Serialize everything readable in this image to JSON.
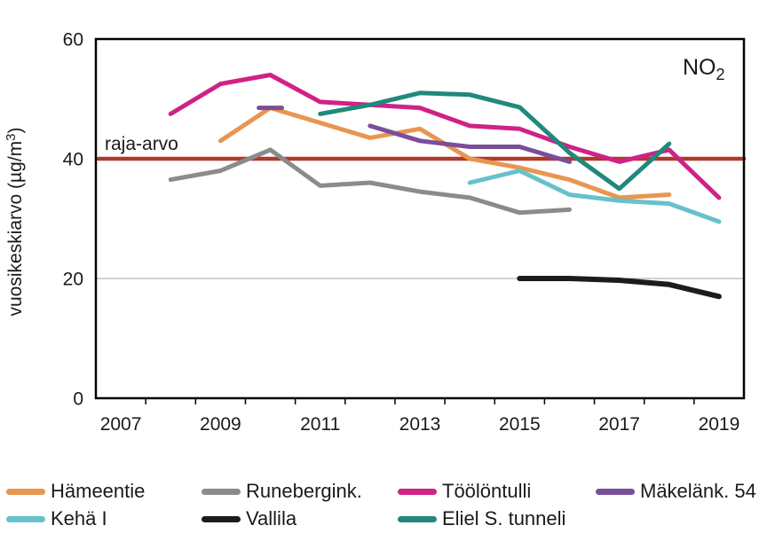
{
  "chart": {
    "corner_title": {
      "text": "NO",
      "subscript": "2"
    },
    "ylabel_parts": {
      "prefix": "vuosikeskiarvo (µg/m",
      "sup": "3",
      "suffix": ")"
    }
  },
  "chart_data": {
    "type": "line",
    "title": "NO2",
    "ylabel": "vuosikeskiarvo (µg/m3)",
    "xlabel": "",
    "ylim": [
      0,
      60
    ],
    "y_ticks": [
      0,
      20,
      40,
      60
    ],
    "x_tick_labels": [
      "2007",
      "2009",
      "2011",
      "2013",
      "2015",
      "2017",
      "2019"
    ],
    "x_range_years": [
      2007,
      2019
    ],
    "grid_y": 20,
    "legend_position": "bottom",
    "limit_line": {
      "label": "raja-arvo",
      "value": 40,
      "color": "#b0392e"
    },
    "series": [
      {
        "name": "Hämeentie",
        "color": "#e8964f",
        "width": 5,
        "segments": [
          [
            [
              2009,
              43
            ],
            [
              2010,
              48.5
            ],
            [
              2011,
              46
            ],
            [
              2012,
              43.5
            ],
            [
              2013,
              45
            ],
            [
              2014,
              40
            ],
            [
              2015,
              38.5
            ],
            [
              2016,
              36.5
            ],
            [
              2017,
              33.5
            ],
            [
              2018,
              34
            ]
          ]
        ]
      },
      {
        "name": "Runebergink.",
        "color": "#8b8b8b",
        "width": 5,
        "segments": [
          [
            [
              2008,
              36.5
            ],
            [
              2009,
              38
            ],
            [
              2010,
              41.5
            ],
            [
              2011,
              35.5
            ],
            [
              2012,
              36
            ],
            [
              2013,
              34.5
            ],
            [
              2014,
              33.5
            ],
            [
              2015,
              31
            ],
            [
              2016,
              31.5
            ]
          ]
        ]
      },
      {
        "name": "Töölöntulli",
        "color": "#cf2287",
        "width": 5,
        "segments": [
          [
            [
              2008,
              47.5
            ],
            [
              2009,
              52.5
            ],
            [
              2010,
              54
            ],
            [
              2011,
              49.5
            ],
            [
              2012,
              49
            ],
            [
              2013,
              48.5
            ],
            [
              2014,
              45.5
            ],
            [
              2015,
              45
            ],
            [
              2016,
              42
            ],
            [
              2017,
              39.5
            ],
            [
              2018,
              41.5
            ],
            [
              2019,
              33.5
            ]
          ]
        ]
      },
      {
        "name": "Mäkelänk. 54",
        "color": "#7b4e99",
        "width": 5,
        "segments": [
          [
            [
              2010,
              48.5
            ]
          ],
          [
            [
              2012,
              45.5
            ],
            [
              2013,
              43
            ],
            [
              2014,
              42
            ],
            [
              2015,
              42
            ],
            [
              2016,
              39.5
            ]
          ]
        ]
      },
      {
        "name": "Kehä I",
        "color": "#67c1cb",
        "width": 5,
        "segments": [
          [
            [
              2014,
              36
            ],
            [
              2015,
              38
            ],
            [
              2016,
              34
            ],
            [
              2017,
              33
            ],
            [
              2018,
              32.5
            ],
            [
              2019,
              29.5
            ]
          ]
        ]
      },
      {
        "name": "Vallila",
        "color": "#1c1c1c",
        "width": 6,
        "segments": [
          [
            [
              2015,
              20
            ],
            [
              2016,
              20
            ],
            [
              2017,
              19.7
            ],
            [
              2018,
              19
            ],
            [
              2019,
              17
            ]
          ]
        ]
      },
      {
        "name": "Eliel S. tunneli",
        "color": "#20897b",
        "width": 5,
        "segments": [
          [
            [
              2011,
              47.5
            ],
            [
              2012,
              49
            ],
            [
              2013,
              51
            ],
            [
              2014,
              50.7
            ],
            [
              2015,
              48.6
            ],
            [
              2016,
              41
            ],
            [
              2017,
              35
            ],
            [
              2018,
              42.5
            ]
          ]
        ]
      }
    ]
  }
}
